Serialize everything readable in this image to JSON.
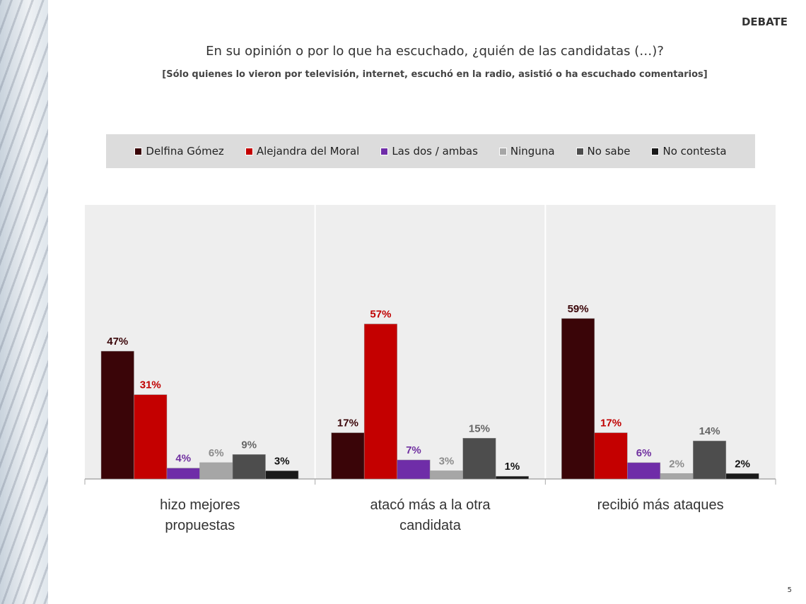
{
  "badge": "DEBATE",
  "page_number": "5",
  "chart_data": {
    "type": "bar",
    "title": "En su opinión o por lo que ha escuchado, ¿quién de las candidatas (…)?",
    "subtitle": "[Sólo quienes lo vieron por televisión, internet, escuchó en la radio, asistió o ha escuchado comentarios]",
    "categories": [
      "hizo mejores propuestas",
      "atacó más a la otra candidata",
      "recibió más ataques"
    ],
    "legend_position": "top",
    "grid": false,
    "ylim": [
      0,
      100
    ],
    "series": [
      {
        "name": "Delfina Gómez",
        "color": "#3a0508",
        "label_color": "#3a0508",
        "values": [
          47,
          17,
          59
        ]
      },
      {
        "name": "Alejandra del Moral",
        "color": "#c40000",
        "label_color": "#c00000",
        "values": [
          31,
          57,
          17
        ]
      },
      {
        "name": "Las dos / ambas",
        "color": "#6f2da8",
        "label_color": "#7030a0",
        "values": [
          4,
          7,
          6
        ]
      },
      {
        "name": "Ninguna",
        "color": "#a6a6a6",
        "label_color": "#8c8c8c",
        "values": [
          6,
          3,
          2
        ]
      },
      {
        "name": "No sabe",
        "color": "#4d4d4d",
        "label_color": "#666666",
        "values": [
          9,
          15,
          14
        ]
      },
      {
        "name": "No contesta",
        "color": "#1a1a1a",
        "label_color": "#111111",
        "values": [
          3,
          1,
          2
        ]
      }
    ]
  }
}
